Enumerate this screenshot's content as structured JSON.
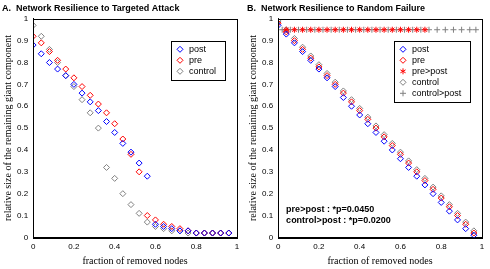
{
  "chart_data": [
    {
      "type": "scatter",
      "title": "A.  Network Resilience to Targeted Attack",
      "x_label": "fraction of removed nodes",
      "y_label": "relative size of the remaining giant component",
      "xlim": [
        0,
        1
      ],
      "ylim": [
        0,
        1
      ],
      "xticks": [
        0,
        0.2,
        0.4,
        0.6,
        0.8,
        1
      ],
      "yticks": [
        0,
        0.1,
        0.2,
        0.3,
        0.4,
        0.5,
        0.6,
        0.7,
        0.8,
        0.9,
        1
      ],
      "grid": false,
      "legend": "upper right",
      "series": [
        {
          "name": "post",
          "color": "#0000ff",
          "marker": "diamond",
          "x": [
            0,
            0.04,
            0.08,
            0.12,
            0.16,
            0.2,
            0.24,
            0.28,
            0.32,
            0.36,
            0.4,
            0.44,
            0.48,
            0.52,
            0.56,
            0.6,
            0.64,
            0.68,
            0.72,
            0.76,
            0.8,
            0.84,
            0.88,
            0.92,
            0.96
          ],
          "values": [
            0.88,
            0.84,
            0.8,
            0.77,
            0.74,
            0.7,
            0.66,
            0.62,
            0.58,
            0.53,
            0.48,
            0.43,
            0.39,
            0.34,
            0.28,
            0.06,
            0.05,
            0.04,
            0.03,
            0.03,
            0.02,
            0.02,
            0.02,
            0.02,
            0.02
          ]
        },
        {
          "name": "pre",
          "color": "#ff0000",
          "marker": "diamond",
          "x": [
            0,
            0.04,
            0.08,
            0.12,
            0.16,
            0.2,
            0.24,
            0.28,
            0.32,
            0.36,
            0.4,
            0.44,
            0.48,
            0.52,
            0.56,
            0.6,
            0.64,
            0.68,
            0.72,
            0.76,
            0.8,
            0.84,
            0.88,
            0.92,
            0.96
          ],
          "values": [
            0.92,
            0.89,
            0.85,
            0.81,
            0.77,
            0.73,
            0.69,
            0.65,
            0.61,
            0.57,
            0.52,
            0.45,
            0.38,
            0.3,
            0.1,
            0.08,
            0.06,
            0.05,
            0.04,
            0.03,
            0.02,
            0.02,
            0.02,
            0.02,
            0.02
          ]
        },
        {
          "name": "control",
          "color": "#808080",
          "marker": "diamond",
          "x": [
            0,
            0.04,
            0.08,
            0.12,
            0.16,
            0.2,
            0.24,
            0.28,
            0.32,
            0.36,
            0.4,
            0.44,
            0.48,
            0.52,
            0.56,
            0.6,
            0.64,
            0.68,
            0.72,
            0.76,
            0.8,
            0.84,
            0.88,
            0.92,
            0.96
          ],
          "values": [
            0.97,
            0.92,
            0.86,
            0.8,
            0.74,
            0.69,
            0.63,
            0.57,
            0.5,
            0.32,
            0.27,
            0.2,
            0.15,
            0.11,
            0.07,
            0.05,
            0.04,
            0.03,
            0.03,
            0.02,
            0.02,
            0.02,
            0.02,
            0.02,
            0.02
          ]
        }
      ]
    },
    {
      "type": "scatter",
      "title": "B.  Network Resilience to Random Failure",
      "x_label": "fraction of removed nodes",
      "y_label": "relative size of the remaining giant component",
      "xlim": [
        0,
        1
      ],
      "ylim": [
        0,
        1
      ],
      "xticks": [
        0,
        0.2,
        0.4,
        0.6,
        0.8,
        1
      ],
      "yticks": [
        0,
        0.1,
        0.2,
        0.3,
        0.4,
        0.5,
        0.6,
        0.7,
        0.8,
        0.9,
        1
      ],
      "grid": false,
      "legend": "upper right",
      "annotations": [
        "pre>post : *p=0.0450",
        "control>post : *p=0.0200"
      ],
      "series": [
        {
          "name": "post",
          "color": "#0000ff",
          "marker": "diamond",
          "x": [
            0,
            0.04,
            0.08,
            0.12,
            0.16,
            0.2,
            0.24,
            0.28,
            0.32,
            0.36,
            0.4,
            0.44,
            0.48,
            0.52,
            0.56,
            0.6,
            0.64,
            0.68,
            0.72,
            0.76,
            0.8,
            0.84,
            0.88,
            0.92,
            0.96
          ],
          "values": [
            0.97,
            0.93,
            0.89,
            0.85,
            0.81,
            0.77,
            0.73,
            0.69,
            0.64,
            0.6,
            0.56,
            0.52,
            0.48,
            0.44,
            0.4,
            0.36,
            0.32,
            0.28,
            0.24,
            0.2,
            0.16,
            0.12,
            0.08,
            0.04,
            0.01
          ]
        },
        {
          "name": "pre",
          "color": "#ff0000",
          "marker": "diamond",
          "x": [
            0,
            0.04,
            0.08,
            0.12,
            0.16,
            0.2,
            0.24,
            0.28,
            0.32,
            0.36,
            0.4,
            0.44,
            0.48,
            0.52,
            0.56,
            0.6,
            0.64,
            0.68,
            0.72,
            0.76,
            0.8,
            0.84,
            0.88,
            0.92,
            0.96
          ],
          "values": [
            0.98,
            0.94,
            0.9,
            0.86,
            0.82,
            0.78,
            0.74,
            0.7,
            0.66,
            0.62,
            0.58,
            0.54,
            0.5,
            0.46,
            0.42,
            0.38,
            0.34,
            0.3,
            0.26,
            0.22,
            0.18,
            0.14,
            0.1,
            0.06,
            0.02
          ]
        },
        {
          "name": "pre>post",
          "color": "#ff0000",
          "marker": "asterisk",
          "x": [
            0.04,
            0.08,
            0.12,
            0.16,
            0.2,
            0.24,
            0.28,
            0.32,
            0.36,
            0.4,
            0.44,
            0.48,
            0.52,
            0.56,
            0.6,
            0.64,
            0.68,
            0.72
          ],
          "values": [
            0.95,
            0.95,
            0.95,
            0.95,
            0.95,
            0.95,
            0.95,
            0.95,
            0.95,
            0.95,
            0.95,
            0.95,
            0.95,
            0.95,
            0.95,
            0.95,
            0.95,
            0.95
          ]
        },
        {
          "name": "control",
          "color": "#808080",
          "marker": "diamond",
          "x": [
            0,
            0.04,
            0.08,
            0.12,
            0.16,
            0.2,
            0.24,
            0.28,
            0.32,
            0.36,
            0.4,
            0.44,
            0.48,
            0.52,
            0.56,
            0.6,
            0.64,
            0.68,
            0.72,
            0.76,
            0.8,
            0.84,
            0.88,
            0.92,
            0.96
          ],
          "values": [
            0.99,
            0.95,
            0.91,
            0.87,
            0.83,
            0.79,
            0.75,
            0.71,
            0.67,
            0.63,
            0.59,
            0.55,
            0.51,
            0.47,
            0.43,
            0.39,
            0.35,
            0.31,
            0.27,
            0.23,
            0.19,
            0.15,
            0.11,
            0.07,
            0.03
          ]
        },
        {
          "name": "control>post",
          "color": "#808080",
          "marker": "plus",
          "x": [
            0.02,
            0.06,
            0.1,
            0.14,
            0.18,
            0.22,
            0.26,
            0.3,
            0.34,
            0.38,
            0.42,
            0.46,
            0.5,
            0.54,
            0.58,
            0.62,
            0.66,
            0.7,
            0.74,
            0.78,
            0.82,
            0.86,
            0.9,
            0.94,
            0.97
          ],
          "values": [
            0.95,
            0.95,
            0.95,
            0.95,
            0.95,
            0.95,
            0.95,
            0.95,
            0.95,
            0.95,
            0.95,
            0.95,
            0.95,
            0.95,
            0.95,
            0.95,
            0.95,
            0.95,
            0.95,
            0.95,
            0.95,
            0.95,
            0.95,
            0.95,
            0.95
          ]
        }
      ]
    }
  ]
}
